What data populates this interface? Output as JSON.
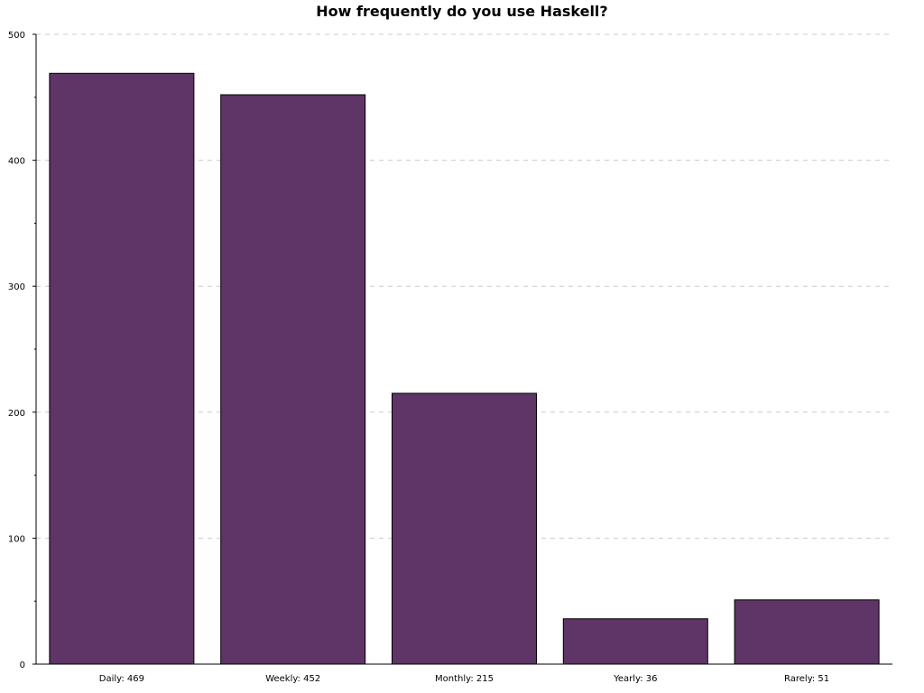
{
  "chart_data": {
    "type": "bar",
    "title": "How frequently do you use Haskell?",
    "xlabel": "",
    "ylabel": "",
    "categories": [
      "Daily: 469",
      "Weekly: 452",
      "Monthly: 215",
      "Yearly: 36",
      "Rarely: 51"
    ],
    "values": [
      469,
      452,
      215,
      36,
      51
    ],
    "ylim": [
      0,
      500
    ],
    "yticks": [
      "0",
      "100",
      "200",
      "300",
      "400",
      "500"
    ],
    "grid": true,
    "legend": "none",
    "colors": {
      "bar_fill": "#5e3566",
      "bar_stroke": "#000000",
      "grid": "#cccccc",
      "axis": "#000000"
    }
  }
}
